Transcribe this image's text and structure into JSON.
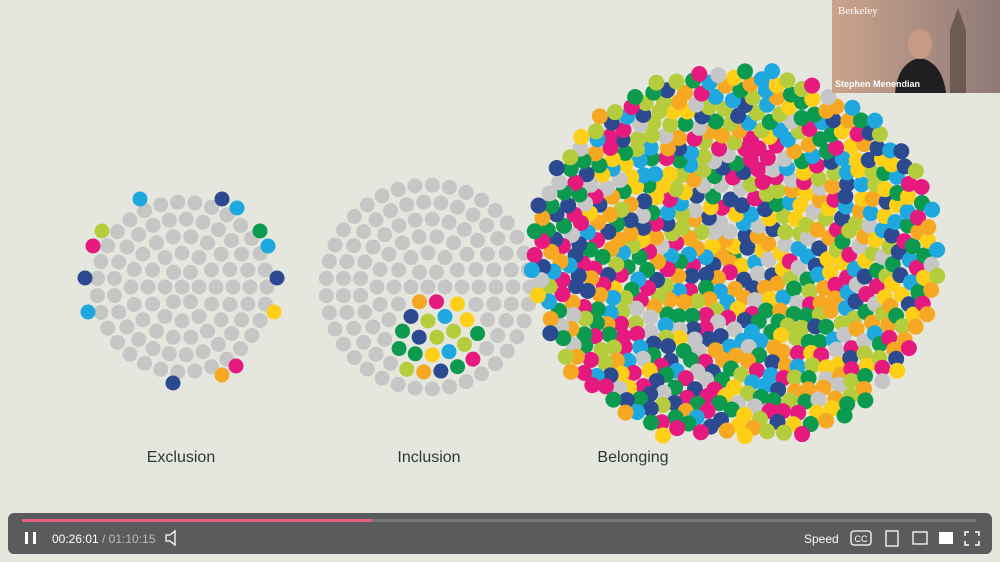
{
  "slide": {
    "labels": [
      "Exclusion",
      "Inclusion",
      "Belonging"
    ]
  },
  "webcam": {
    "logo": "Berkeley",
    "speaker": "Stephen Menendian"
  },
  "player": {
    "current_time": "00:26:01",
    "duration": "/ 01:10:15",
    "speed": "Speed",
    "captions": "CC"
  }
}
